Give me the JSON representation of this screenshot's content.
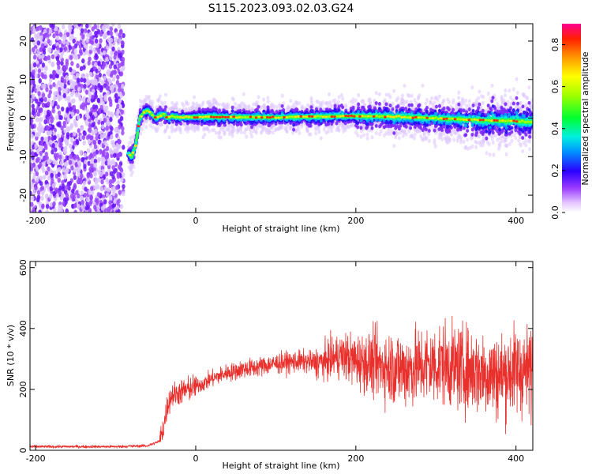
{
  "title": "S115.2023.093.02.03.G24",
  "chart_data": [
    {
      "type": "heatmap",
      "xlabel": "Height of straight line (km)",
      "ylabel": "Frequency (Hz)",
      "xlim": [
        -207,
        421
      ],
      "ylim": [
        -24.5,
        24.5
      ],
      "xticks": [
        -200,
        0,
        200,
        400
      ],
      "yticks": [
        -20,
        -10,
        0,
        10,
        20
      ],
      "colorbar": {
        "label": "Normalized spectral amplitude",
        "range": [
          0,
          0.9
        ],
        "ticks": [
          0.0,
          0.2,
          0.4,
          0.6,
          0.8
        ]
      },
      "trace": {
        "x": [
          -207,
          -90,
          -85,
          -80,
          -75,
          -72,
          -70,
          -65,
          -60,
          -55,
          -50,
          -45,
          -40,
          -35,
          -30,
          -20,
          0,
          50,
          100,
          150,
          200,
          250,
          300,
          350,
          400,
          421
        ],
        "y": [
          null,
          null,
          -9,
          -10,
          -7,
          -3,
          0,
          1.5,
          2,
          1,
          0,
          0.5,
          1,
          0,
          0.5,
          0.2,
          0.3,
          0.3,
          0.2,
          0.4,
          0.5,
          0.4,
          0,
          -0.5,
          -0.8,
          -1
        ]
      },
      "noise_region_x": [
        -207,
        -90
      ]
    },
    {
      "type": "line",
      "xlabel": "Height of straight line (km)",
      "ylabel": "SNR (10 * v/v)",
      "xlim": [
        -207,
        421
      ],
      "ylim": [
        0,
        620
      ],
      "xticks": [
        -200,
        0,
        200,
        400
      ],
      "yticks": [
        0,
        200,
        400,
        600
      ],
      "series": [
        {
          "color": "#e8302d",
          "x": [
            -207,
            -150,
            -100,
            -60,
            -45,
            -40,
            -35,
            -30,
            -20,
            -10,
            0,
            10,
            20,
            30,
            40,
            50,
            60,
            70,
            80,
            90,
            100,
            110,
            120,
            130,
            140,
            150,
            160,
            170,
            180,
            190,
            200,
            210,
            220,
            230,
            240,
            250,
            260,
            270,
            280,
            290,
            300,
            310,
            320,
            330,
            340,
            350,
            360,
            370,
            380,
            390,
            400,
            410,
            421
          ],
          "y": [
            12,
            12,
            12,
            15,
            30,
            80,
            150,
            180,
            190,
            200,
            210,
            220,
            235,
            245,
            255,
            260,
            268,
            270,
            275,
            280,
            285,
            288,
            290,
            292,
            290,
            288,
            290,
            300,
            310,
            305,
            295,
            290,
            285,
            280,
            275,
            270,
            265,
            270,
            275,
            280,
            280,
            285,
            275,
            270,
            265,
            260,
            255,
            250,
            245,
            255,
            265,
            260,
            255
          ]
        }
      ]
    }
  ]
}
